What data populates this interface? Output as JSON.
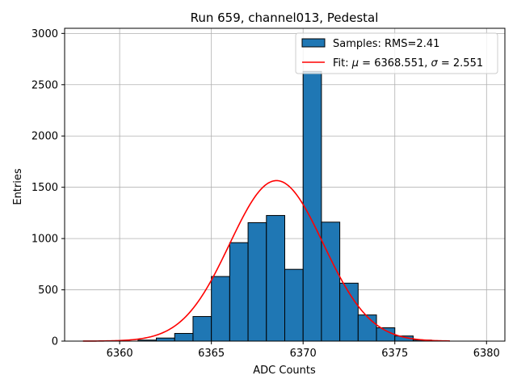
{
  "chart_data": {
    "type": "bar",
    "title": "Run 659, channel013, Pedestal",
    "xlabel": "ADC Counts",
    "ylabel": "Entries",
    "xlim": [
      6357,
      6381
    ],
    "ylim": [
      0,
      3050
    ],
    "xticks": [
      6360,
      6365,
      6370,
      6375,
      6380
    ],
    "yticks": [
      0,
      500,
      1000,
      1500,
      2000,
      2500,
      3000
    ],
    "grid": true,
    "legend_position": "top-right",
    "histogram": {
      "name": "Samples: RMS=2.41",
      "bin_width": 1,
      "bins": [
        {
          "x": 6361,
          "y": 10
        },
        {
          "x": 6362,
          "y": 30
        },
        {
          "x": 6363,
          "y": 75
        },
        {
          "x": 6364,
          "y": 240
        },
        {
          "x": 6365,
          "y": 630
        },
        {
          "x": 6366,
          "y": 960
        },
        {
          "x": 6367,
          "y": 1155
        },
        {
          "x": 6368,
          "y": 1225
        },
        {
          "x": 6369,
          "y": 700
        },
        {
          "x": 6370,
          "y": 2630
        },
        {
          "x": 6371,
          "y": 1160
        },
        {
          "x": 6372,
          "y": 565
        },
        {
          "x": 6373,
          "y": 255
        },
        {
          "x": 6374,
          "y": 130
        },
        {
          "x": 6375,
          "y": 50
        },
        {
          "x": 6376,
          "y": 10
        }
      ],
      "fill": "#1f77b4",
      "edge": "#000000"
    },
    "fit": {
      "label_prefix": "Fit: ",
      "label_mu": "μ",
      "label_mid": " = 6368.551, ",
      "label_sigma": "σ",
      "label_end": " = 2.551",
      "mu": 6368.551,
      "sigma": 2.551,
      "amplitude": 1565,
      "x_range": [
        6358,
        6378
      ],
      "color": "#ff0000"
    }
  }
}
